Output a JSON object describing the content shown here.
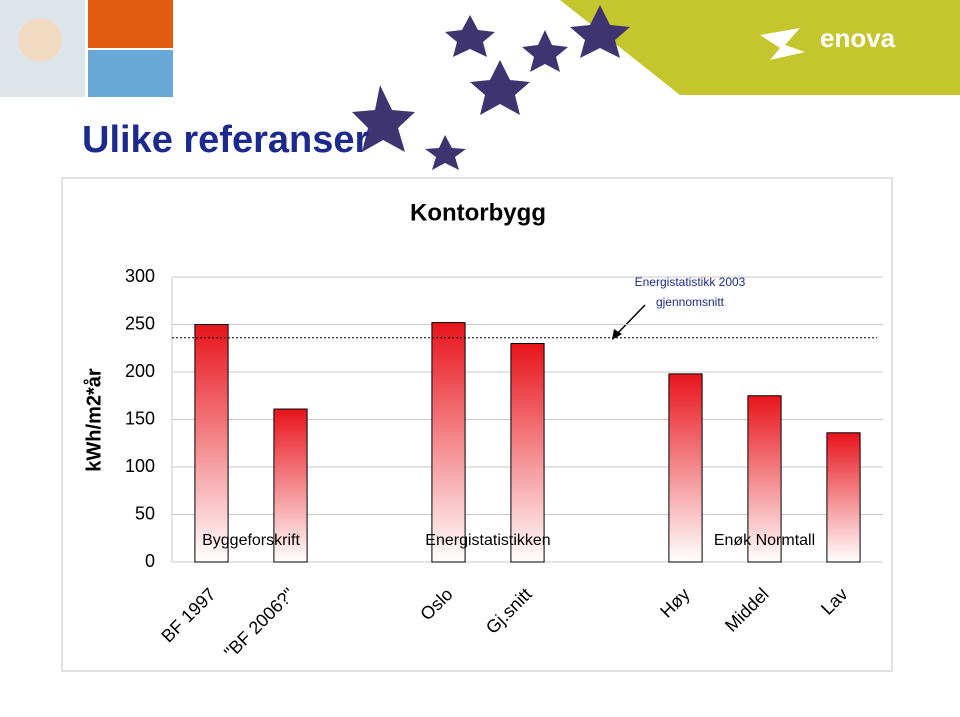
{
  "slide_title": "Ulike referanser",
  "logo": "enova",
  "chart_data": {
    "type": "bar",
    "title": "Kontorbygg",
    "y_label": "kWh/m2*år",
    "categories": [
      "BF 1997",
      "\"BF 2006?\"",
      null,
      "Oslo",
      "Gj.snitt",
      null,
      "Høy",
      "Middel",
      "Lav"
    ],
    "values": [
      250,
      161,
      null,
      252,
      230,
      null,
      198,
      175,
      136
    ],
    "color": "#e8141b",
    "ylim": [
      0,
      300
    ],
    "yticks": [
      0,
      50,
      100,
      150,
      200,
      250,
      300
    ],
    "grid": true,
    "group_labels": [
      "Byggeforskrift",
      "Energistatistikken",
      "Enøk Normtall"
    ],
    "reference_line": 236,
    "annotation": [
      "Energistatistikk 2003",
      "gjennomsnitt"
    ]
  }
}
